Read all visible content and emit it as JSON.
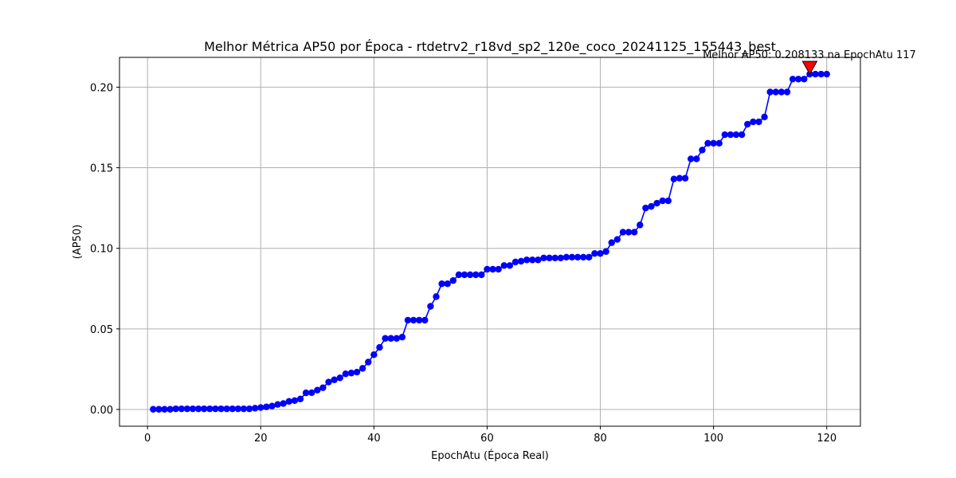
{
  "chart_data": {
    "type": "line",
    "title": "Melhor Métrica AP50 por Época - rtdetrv2_r18vd_sp2_120e_coco_20241125_155443_best",
    "xlabel": "EpochAtu (Época Real)",
    "ylabel": "(AP50)",
    "xlim": [
      -4.95,
      125.95
    ],
    "ylim": [
      -0.0104,
      0.2185
    ],
    "xticks": [
      0,
      20,
      40,
      60,
      80,
      100,
      120
    ],
    "xtick_labels": [
      "0",
      "20",
      "40",
      "60",
      "80",
      "100",
      "120"
    ],
    "yticks": [
      0.0,
      0.05,
      0.1,
      0.15,
      0.2
    ],
    "ytick_labels": [
      "0.00",
      "0.05",
      "0.10",
      "0.15",
      "0.20"
    ],
    "grid": true,
    "series": [
      {
        "color": "#0000ff",
        "marker": "circle",
        "x": [
          1,
          2,
          3,
          4,
          5,
          6,
          7,
          8,
          9,
          10,
          11,
          12,
          13,
          14,
          15,
          16,
          17,
          18,
          19,
          20,
          21,
          22,
          23,
          24,
          25,
          26,
          27,
          28,
          29,
          30,
          31,
          32,
          33,
          34,
          35,
          36,
          37,
          38,
          39,
          40,
          41,
          42,
          43,
          44,
          45,
          46,
          47,
          48,
          49,
          50,
          51,
          52,
          53,
          54,
          55,
          56,
          57,
          58,
          59,
          60,
          61,
          62,
          63,
          64,
          65,
          66,
          67,
          68,
          69,
          70,
          71,
          72,
          73,
          74,
          75,
          76,
          77,
          78,
          79,
          80,
          81,
          82,
          83,
          84,
          85,
          86,
          87,
          88,
          89,
          90,
          91,
          92,
          93,
          94,
          95,
          96,
          97,
          98,
          99,
          100,
          101,
          102,
          103,
          104,
          105,
          106,
          107,
          108,
          109,
          110,
          111,
          112,
          113,
          114,
          115,
          116,
          117,
          118,
          119,
          120
        ],
        "y": [
          0.0001,
          0.0001,
          0.0001,
          0.0001,
          0.0004,
          0.0004,
          0.0004,
          0.0004,
          0.0004,
          0.0004,
          0.0004,
          0.0004,
          0.0004,
          0.0004,
          0.0004,
          0.0004,
          0.0004,
          0.0004,
          0.0008,
          0.0012,
          0.0016,
          0.0021,
          0.0031,
          0.0037,
          0.005,
          0.0055,
          0.0065,
          0.0103,
          0.0104,
          0.012,
          0.0135,
          0.017,
          0.0184,
          0.0196,
          0.0221,
          0.0226,
          0.0232,
          0.0255,
          0.0294,
          0.034,
          0.0385,
          0.0441,
          0.0441,
          0.0441,
          0.0449,
          0.0554,
          0.0554,
          0.0554,
          0.0554,
          0.064,
          0.07,
          0.078,
          0.078,
          0.08,
          0.0836,
          0.0836,
          0.0836,
          0.0836,
          0.0836,
          0.087,
          0.087,
          0.087,
          0.0893,
          0.0893,
          0.0915,
          0.092,
          0.0928,
          0.0928,
          0.0928,
          0.094,
          0.094,
          0.094,
          0.094,
          0.0945,
          0.0945,
          0.0945,
          0.0945,
          0.0945,
          0.0968,
          0.0968,
          0.098,
          0.1035,
          0.1055,
          0.11,
          0.11,
          0.11,
          0.1145,
          0.125,
          0.126,
          0.128,
          0.1295,
          0.1295,
          0.143,
          0.1435,
          0.1435,
          0.1555,
          0.1555,
          0.161,
          0.1652,
          0.1652,
          0.1652,
          0.1705,
          0.1705,
          0.1705,
          0.1705,
          0.177,
          0.1785,
          0.1785,
          0.1815,
          0.197,
          0.197,
          0.197,
          0.197,
          0.205,
          0.205,
          0.205,
          0.2081,
          0.2081,
          0.2081,
          0.2081
        ]
      }
    ],
    "best_marker": {
      "x": 117,
      "y": 0.208133,
      "color": "#ff0000"
    },
    "annotation": "Melhor AP50: 0.208133 na EpochAtu 117"
  }
}
